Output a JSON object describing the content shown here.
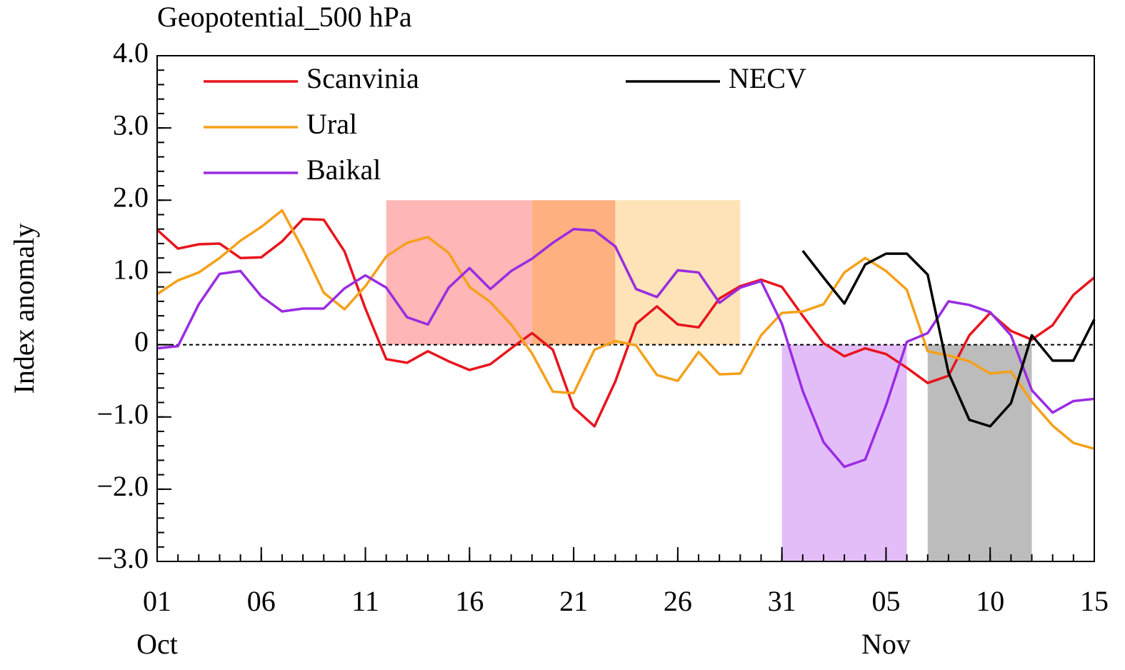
{
  "chart_data": {
    "type": "line",
    "title": "Geopotential_500 hPa",
    "ylabel": "Index anomaly",
    "x": [
      0,
      1,
      2,
      3,
      4,
      5,
      6,
      7,
      8,
      9,
      10,
      11,
      12,
      13,
      14,
      15,
      16,
      17,
      18,
      19,
      20,
      21,
      22,
      23,
      24,
      25,
      26,
      27,
      28,
      29,
      30,
      31,
      32,
      33,
      34,
      35,
      36,
      37,
      38,
      39,
      40,
      41,
      42,
      43,
      44,
      45
    ],
    "xlim": [
      0,
      45
    ],
    "xticks": [
      {
        "value": 0,
        "label": "01"
      },
      {
        "value": 5,
        "label": "06"
      },
      {
        "value": 10,
        "label": "11"
      },
      {
        "value": 15,
        "label": "16"
      },
      {
        "value": 20,
        "label": "21"
      },
      {
        "value": 25,
        "label": "26"
      },
      {
        "value": 30,
        "label": "31"
      },
      {
        "value": 35,
        "label": "05"
      },
      {
        "value": 40,
        "label": "10"
      },
      {
        "value": 45,
        "label": "15"
      }
    ],
    "month_labels": [
      {
        "value": 0,
        "label": "Oct"
      },
      {
        "value": 35,
        "label": "Nov"
      }
    ],
    "xminor_step": 1,
    "ylim": [
      -3,
      4
    ],
    "yticks": [
      {
        "value": -3,
        "label": "−3.0"
      },
      {
        "value": -2,
        "label": "−2.0"
      },
      {
        "value": -1,
        "label": "−1.0"
      },
      0,
      {
        "value": 1,
        "label": "1.0"
      },
      {
        "value": 2,
        "label": "2.0"
      },
      {
        "value": 3,
        "label": "3.0"
      },
      {
        "value": 4,
        "label": "4.0"
      }
    ],
    "yminor_step": 0.2,
    "zero_line": true,
    "shaded_regions": [
      {
        "x": [
          11,
          18
        ],
        "y": [
          0,
          2
        ],
        "color": "#ffb6b6"
      },
      {
        "x": [
          18,
          22
        ],
        "y": [
          0,
          2
        ],
        "color": "#ffb080"
      },
      {
        "x": [
          22,
          28
        ],
        "y": [
          0,
          2
        ],
        "color": "#ffe3b8"
      },
      {
        "x": [
          30,
          36
        ],
        "y": [
          -3,
          0
        ],
        "color": "#e3bdf8"
      },
      {
        "x": [
          37,
          42
        ],
        "y": [
          -3,
          0
        ],
        "color": "#bcbcbc"
      }
    ],
    "series": [
      {
        "name": "Scanvinia",
        "color": "#e8141c",
        "values": [
          1.59,
          1.33,
          1.39,
          1.4,
          1.2,
          1.21,
          1.43,
          1.74,
          1.73,
          1.29,
          0.5,
          -0.2,
          -0.25,
          -0.09,
          -0.23,
          -0.35,
          -0.27,
          -0.05,
          0.16,
          -0.07,
          -0.87,
          -1.13,
          -0.51,
          0.29,
          0.53,
          0.28,
          0.24,
          0.64,
          0.81,
          0.9,
          0.8,
          0.4,
          0.02,
          -0.16,
          -0.05,
          -0.13,
          -0.32,
          -0.53,
          -0.43,
          0.13,
          0.44,
          0.19,
          0.07,
          0.27,
          0.69,
          0.93
        ]
      },
      {
        "name": "Ural",
        "color": "#f5a01a",
        "values": [
          0.7,
          0.89,
          1.0,
          1.2,
          1.44,
          1.63,
          1.86,
          1.32,
          0.72,
          0.49,
          0.81,
          1.22,
          1.41,
          1.49,
          1.27,
          0.8,
          0.59,
          0.28,
          -0.12,
          -0.65,
          -0.67,
          -0.07,
          0.05,
          -0.01,
          -0.42,
          -0.5,
          -0.1,
          -0.41,
          -0.4,
          0.13,
          0.44,
          0.46,
          0.56,
          1.0,
          1.2,
          1.02,
          0.76,
          -0.09,
          -0.15,
          -0.23,
          -0.4,
          -0.37,
          -0.79,
          -1.12,
          -1.36,
          -1.44
        ]
      },
      {
        "name": "Baikal",
        "color": "#9a2be2",
        "values": [
          -0.05,
          -0.02,
          0.56,
          0.98,
          1.02,
          0.67,
          0.46,
          0.5,
          0.5,
          0.78,
          0.96,
          0.79,
          0.38,
          0.28,
          0.79,
          1.06,
          0.77,
          1.02,
          1.19,
          1.41,
          1.6,
          1.58,
          1.36,
          0.77,
          0.66,
          1.03,
          1.0,
          0.58,
          0.79,
          0.88,
          0.29,
          -0.64,
          -1.35,
          -1.69,
          -1.59,
          -0.84,
          0.04,
          0.16,
          0.6,
          0.55,
          0.45,
          0.13,
          -0.63,
          -0.94,
          -0.78,
          -0.75
        ]
      },
      {
        "name": "NECV",
        "color": "#000000",
        "values": [
          null,
          null,
          null,
          null,
          null,
          null,
          null,
          null,
          null,
          null,
          null,
          null,
          null,
          null,
          null,
          null,
          null,
          null,
          null,
          null,
          null,
          null,
          null,
          null,
          null,
          null,
          null,
          null,
          null,
          null,
          null,
          1.3,
          0.93,
          0.57,
          1.11,
          1.26,
          1.26,
          0.97,
          -0.39,
          -1.04,
          -1.13,
          -0.81,
          0.13,
          -0.22,
          -0.22,
          0.35
        ]
      }
    ]
  }
}
